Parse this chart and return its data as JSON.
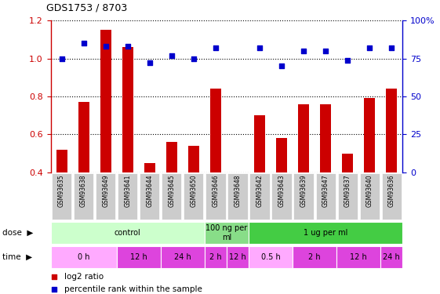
{
  "title": "GDS1753 / 8703",
  "samples": [
    "GSM93635",
    "GSM93638",
    "GSM93649",
    "GSM93641",
    "GSM93644",
    "GSM93645",
    "GSM93650",
    "GSM93646",
    "GSM93648",
    "GSM93642",
    "GSM93643",
    "GSM93639",
    "GSM93647",
    "GSM93637",
    "GSM93640",
    "GSM93636"
  ],
  "log2_ratio": [
    0.52,
    0.77,
    1.15,
    1.06,
    0.45,
    0.56,
    0.54,
    0.84,
    null,
    0.7,
    0.58,
    0.76,
    0.76,
    0.5,
    0.79,
    0.84
  ],
  "percentile_rank": [
    75,
    85,
    83,
    83,
    72,
    77,
    75,
    82,
    null,
    82,
    70,
    80,
    80,
    74,
    82,
    82
  ],
  "bar_color": "#cc0000",
  "scatter_color": "#0000cc",
  "ylim_left": [
    0.4,
    1.2
  ],
  "ylim_right": [
    0,
    100
  ],
  "yticks_left": [
    0.4,
    0.6,
    0.8,
    1.0,
    1.2
  ],
  "yticks_right": [
    0,
    25,
    50,
    75,
    100
  ],
  "dose_labels": [
    {
      "label": "control",
      "start": 0,
      "end": 7,
      "color": "#ccffcc"
    },
    {
      "label": "100 ng per\nml",
      "start": 7,
      "end": 9,
      "color": "#88dd88"
    },
    {
      "label": "1 ug per ml",
      "start": 9,
      "end": 16,
      "color": "#44cc44"
    }
  ],
  "time_labels": [
    {
      "label": "0 h",
      "start": 0,
      "end": 3,
      "color": "#ffaaff"
    },
    {
      "label": "12 h",
      "start": 3,
      "end": 5,
      "color": "#dd44dd"
    },
    {
      "label": "24 h",
      "start": 5,
      "end": 7,
      "color": "#dd44dd"
    },
    {
      "label": "2 h",
      "start": 7,
      "end": 8,
      "color": "#dd44dd"
    },
    {
      "label": "12 h",
      "start": 8,
      "end": 9,
      "color": "#dd44dd"
    },
    {
      "label": "0.5 h",
      "start": 9,
      "end": 11,
      "color": "#ffaaff"
    },
    {
      "label": "2 h",
      "start": 11,
      "end": 13,
      "color": "#dd44dd"
    },
    {
      "label": "12 h",
      "start": 13,
      "end": 15,
      "color": "#dd44dd"
    },
    {
      "label": "24 h",
      "start": 15,
      "end": 16,
      "color": "#dd44dd"
    }
  ],
  "dose_row_label": "dose",
  "time_row_label": "time",
  "legend_red_label": "log2 ratio",
  "legend_blue_label": "percentile rank within the sample",
  "tick_label_color_left": "#cc0000",
  "tick_label_color_right": "#0000cc",
  "xtick_bg_color": "#cccccc",
  "chart_bg": "#ffffff"
}
